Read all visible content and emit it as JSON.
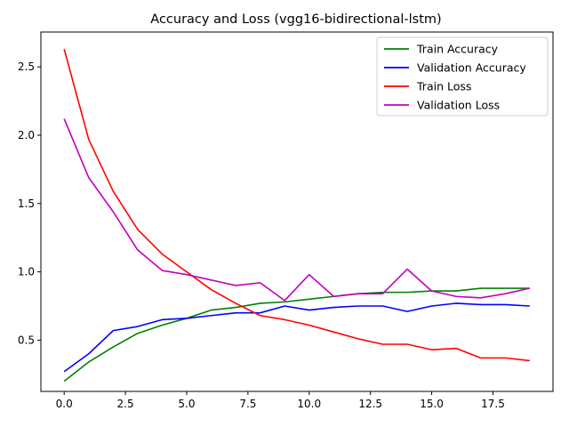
{
  "chart_data": {
    "type": "line",
    "title": "Accuracy and Loss (vgg16-bidirectional-lstm)",
    "xlabel": "",
    "ylabel": "",
    "x": [
      0,
      1,
      2,
      3,
      4,
      5,
      6,
      7,
      8,
      9,
      10,
      11,
      12,
      13,
      14,
      15,
      16,
      17,
      18,
      19
    ],
    "xlim": [
      -0.95,
      19.95
    ],
    "ylim": [
      0.125,
      2.755
    ],
    "xticks": [
      0,
      2.5,
      5,
      7.5,
      10,
      12.5,
      15,
      17.5
    ],
    "xtick_labels": [
      "0.0",
      "2.5",
      "5.0",
      "7.5",
      "10.0",
      "12.5",
      "15.0",
      "17.5"
    ],
    "yticks": [
      0.5,
      1.0,
      1.5,
      2.0,
      2.5
    ],
    "ytick_labels": [
      "0.5",
      "1.0",
      "1.5",
      "2.0",
      "2.5"
    ],
    "grid": false,
    "legend_position": "top-right",
    "series": [
      {
        "name": "Train Accuracy",
        "color": "#008000",
        "values": [
          0.2,
          0.34,
          0.45,
          0.55,
          0.61,
          0.66,
          0.72,
          0.74,
          0.77,
          0.78,
          0.8,
          0.82,
          0.84,
          0.85,
          0.85,
          0.86,
          0.86,
          0.88,
          0.88,
          0.88
        ]
      },
      {
        "name": "Validation Accuracy",
        "color": "#0000ff",
        "values": [
          0.27,
          0.4,
          0.57,
          0.6,
          0.65,
          0.66,
          0.68,
          0.7,
          0.7,
          0.75,
          0.72,
          0.74,
          0.75,
          0.75,
          0.71,
          0.75,
          0.77,
          0.76,
          0.76,
          0.75
        ]
      },
      {
        "name": "Train Loss",
        "color": "#ff0000",
        "values": [
          2.63,
          1.97,
          1.59,
          1.31,
          1.13,
          1.0,
          0.87,
          0.77,
          0.68,
          0.65,
          0.61,
          0.56,
          0.51,
          0.47,
          0.47,
          0.43,
          0.44,
          0.37,
          0.37,
          0.35
        ]
      },
      {
        "name": "Validation Loss",
        "color": "#bf00bf",
        "values": [
          2.12,
          1.69,
          1.44,
          1.16,
          1.01,
          0.98,
          0.94,
          0.9,
          0.92,
          0.79,
          0.98,
          0.82,
          0.84,
          0.84,
          1.02,
          0.86,
          0.82,
          0.81,
          0.84,
          0.88
        ]
      }
    ]
  }
}
